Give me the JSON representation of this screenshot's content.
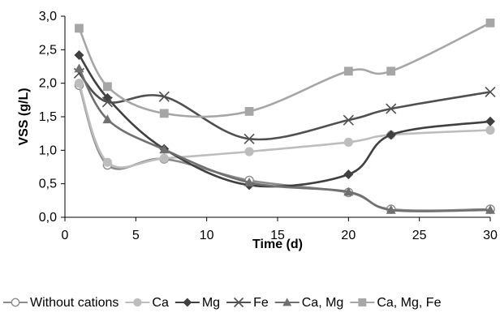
{
  "chart_data": {
    "type": "line",
    "title": "",
    "xlabel": "Time (d)",
    "ylabel": "VSS (g/L)",
    "xlim": [
      0,
      30
    ],
    "ylim": [
      0,
      3.0
    ],
    "xticks": [
      "0",
      "5",
      "10",
      "15",
      "20",
      "25",
      "30"
    ],
    "yticks": [
      "0,0",
      "0,5",
      "1,0",
      "1,5",
      "2,0",
      "2,5",
      "3,0"
    ],
    "grid": false,
    "legend_position": "bottom",
    "series": [
      {
        "name": "Without cations",
        "marker": "circle-open",
        "color": "#8c8c8c",
        "x": [
          1,
          3,
          7,
          13,
          20,
          23,
          30
        ],
        "y": [
          1.97,
          0.78,
          0.87,
          0.55,
          0.37,
          0.12,
          0.12
        ]
      },
      {
        "name": "Ca",
        "marker": "circle",
        "color": "#bdbdbd",
        "x": [
          1,
          3,
          7,
          13,
          20,
          23,
          30
        ],
        "y": [
          2.0,
          0.82,
          0.88,
          0.98,
          1.12,
          1.23,
          1.3
        ]
      },
      {
        "name": "Mg",
        "marker": "diamond",
        "color": "#404040",
        "x": [
          1,
          3,
          7,
          13,
          20,
          23,
          30
        ],
        "y": [
          2.42,
          1.78,
          1.02,
          0.48,
          0.64,
          1.23,
          1.43
        ]
      },
      {
        "name": "Fe",
        "marker": "x",
        "color": "#505050",
        "x": [
          1,
          3,
          7,
          13,
          20,
          23,
          30
        ],
        "y": [
          2.15,
          1.72,
          1.8,
          1.17,
          1.45,
          1.62,
          1.87
        ]
      },
      {
        "name": "Ca, Mg",
        "marker": "triangle",
        "color": "#707070",
        "x": [
          1,
          3,
          7,
          13,
          20,
          23,
          30
        ],
        "y": [
          2.22,
          1.46,
          1.01,
          0.52,
          0.38,
          0.11,
          0.11
        ]
      },
      {
        "name": "Ca, Mg, Fe",
        "marker": "square",
        "color": "#a6a6a6",
        "x": [
          1,
          3,
          7,
          13,
          20,
          23,
          30
        ],
        "y": [
          2.82,
          1.95,
          1.55,
          1.58,
          2.18,
          2.18,
          2.9
        ]
      }
    ]
  }
}
